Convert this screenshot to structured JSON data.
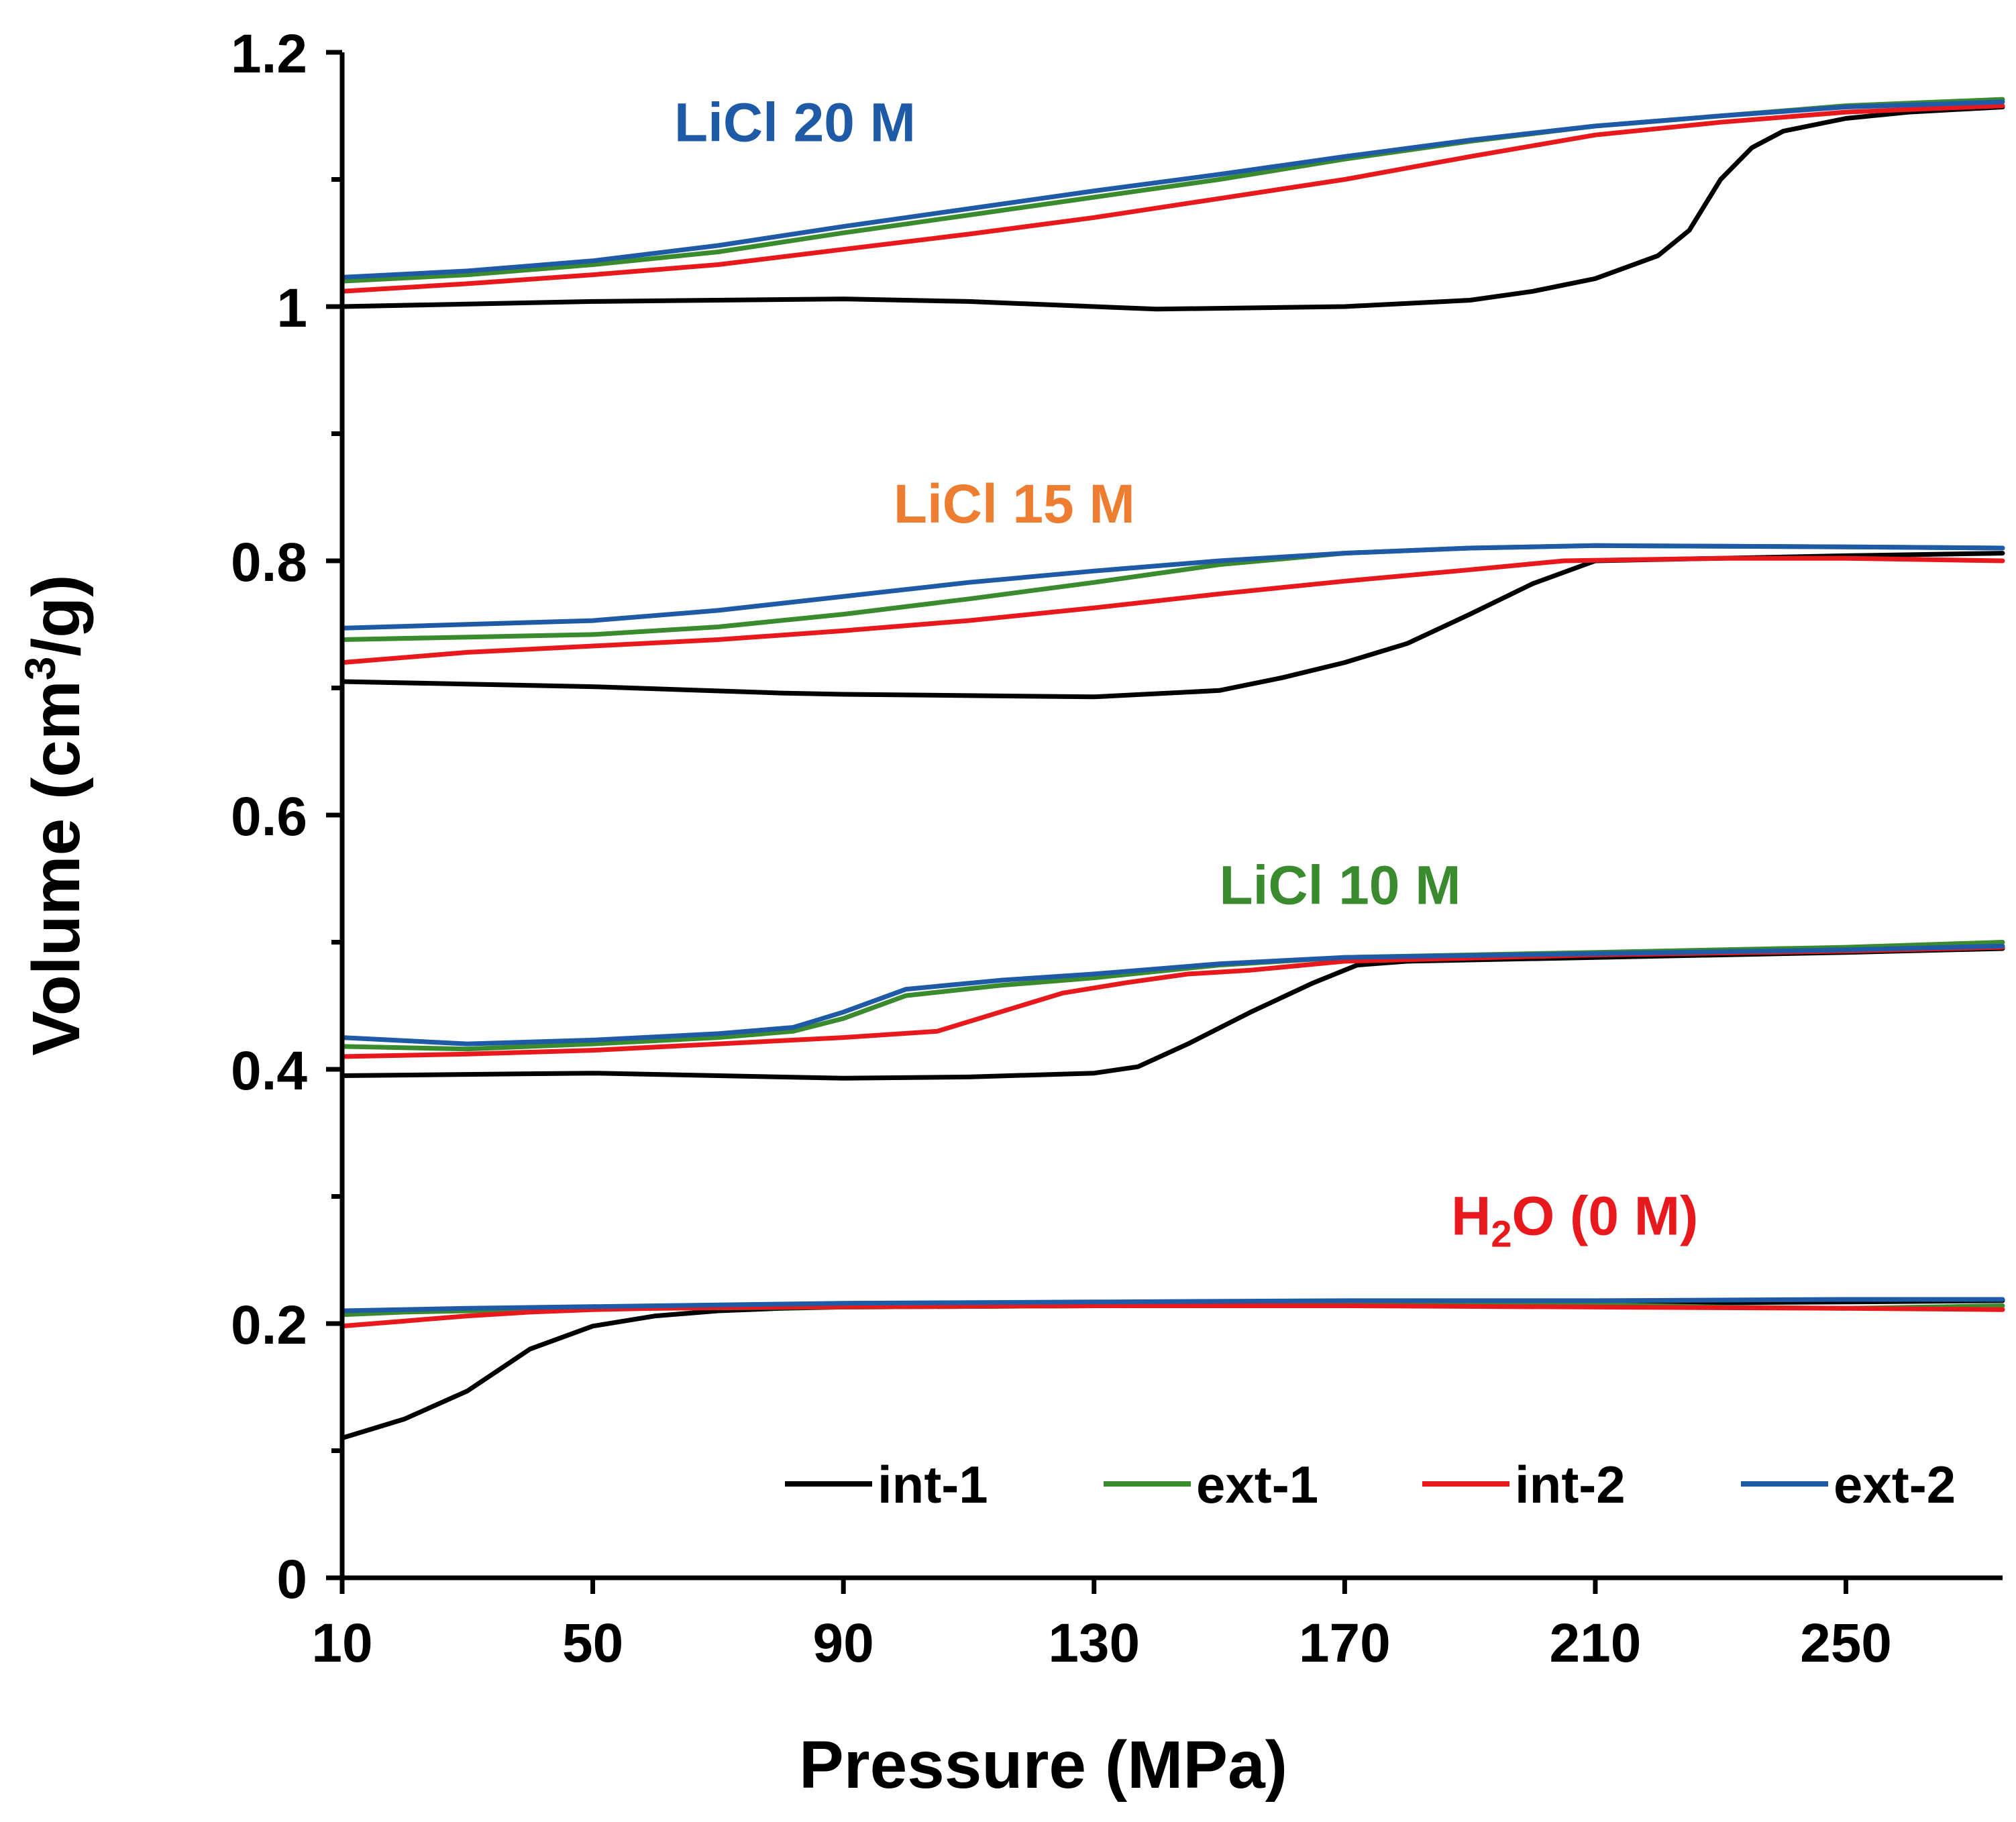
{
  "chart_data": {
    "type": "line",
    "title": "",
    "xlabel": "Pressure (MPa)",
    "ylabel": {
      "prefix": "Volume (cm",
      "superscript": "3",
      "suffix": "/g)"
    },
    "xlim": [
      10,
      275
    ],
    "ylim": [
      0,
      1.2
    ],
    "xticks": [
      10,
      50,
      90,
      130,
      170,
      210,
      250
    ],
    "xtick_labels": [
      "10",
      "50",
      "90",
      "130",
      "170",
      "210",
      "250"
    ],
    "yticks": [
      0,
      0.2,
      0.4,
      0.6,
      0.8,
      1.0,
      1.2
    ],
    "ytick_labels": [
      "0",
      "0.2",
      "0.4",
      "0.6",
      "0.8",
      "1",
      "1.2"
    ],
    "y_minor_step": 0.1,
    "grid": false,
    "legend": {
      "placement": "bottom-right",
      "entries": [
        "int-1",
        "ext-1",
        "int-2",
        "ext-2"
      ]
    },
    "series_colors": {
      "int-1": "#000000",
      "ext-1": "#3a8a2e",
      "int-2": "#e8191c",
      "ext-2": "#1f5aa6"
    },
    "annotations": [
      {
        "id": "licl-20",
        "text": "LiCl 20 M",
        "color": "#1f5aa6",
        "at": [
          63,
          1.13
        ]
      },
      {
        "id": "licl-15",
        "text": "LiCl 15 M",
        "color": "#ed7d31",
        "at": [
          98,
          0.83
        ]
      },
      {
        "id": "licl-10",
        "text": "LiCl 10 M",
        "color": "#3a8a2e",
        "at": [
          150,
          0.53
        ]
      },
      {
        "id": "h2o",
        "text": "H",
        "sub": "2",
        "text2": "O (0 M)",
        "color": "#e8191c",
        "at": [
          187,
          0.27
        ]
      }
    ],
    "groups": [
      {
        "name": "H2O (0 M)",
        "series": [
          {
            "name": "int-1",
            "x": [
              10,
              20,
              30,
              40,
              50,
              60,
              70,
              80,
              90,
              130,
              170,
              210,
              250,
              275
            ],
            "y": [
              0.11,
              0.125,
              0.147,
              0.18,
              0.198,
              0.206,
              0.21,
              0.212,
              0.213,
              0.214,
              0.215,
              0.216,
              0.217,
              0.218
            ]
          },
          {
            "name": "ext-1",
            "x": [
              10,
              20,
              40,
              60,
              90,
              130,
              170,
              210,
              230,
              250,
              275
            ],
            "y": [
              0.207,
              0.209,
              0.211,
              0.212,
              0.213,
              0.214,
              0.215,
              0.215,
              0.213,
              0.212,
              0.214
            ]
          },
          {
            "name": "int-2",
            "x": [
              10,
              20,
              30,
              40,
              50,
              60,
              80,
              130,
              170,
              210,
              250,
              275
            ],
            "y": [
              0.198,
              0.202,
              0.206,
              0.209,
              0.211,
              0.212,
              0.213,
              0.214,
              0.214,
              0.213,
              0.212,
              0.211
            ]
          },
          {
            "name": "ext-2",
            "x": [
              10,
              30,
              60,
              90,
              130,
              170,
              210,
              250,
              275
            ],
            "y": [
              0.21,
              0.212,
              0.214,
              0.216,
              0.217,
              0.218,
              0.218,
              0.219,
              0.219
            ]
          }
        ]
      },
      {
        "name": "LiCl 10 M",
        "series": [
          {
            "name": "int-1",
            "x": [
              10,
              50,
              90,
              110,
              130,
              137,
              145,
              155,
              165,
              172,
              180,
              210,
              250,
              275
            ],
            "y": [
              0.395,
              0.397,
              0.393,
              0.394,
              0.397,
              0.402,
              0.42,
              0.445,
              0.468,
              0.482,
              0.485,
              0.488,
              0.492,
              0.495
            ]
          },
          {
            "name": "ext-1",
            "x": [
              10,
              30,
              50,
              70,
              82,
              90,
              100,
              115,
              130,
              150,
              170,
              210,
              250,
              275
            ],
            "y": [
              0.418,
              0.416,
              0.42,
              0.425,
              0.43,
              0.44,
              0.458,
              0.466,
              0.472,
              0.482,
              0.488,
              0.492,
              0.496,
              0.5
            ]
          },
          {
            "name": "int-2",
            "x": [
              10,
              30,
              50,
              70,
              90,
              105,
              115,
              125,
              135,
              145,
              155,
              170,
              210,
              250,
              275
            ],
            "y": [
              0.41,
              0.412,
              0.415,
              0.42,
              0.425,
              0.43,
              0.445,
              0.46,
              0.468,
              0.475,
              0.478,
              0.485,
              0.49,
              0.493,
              0.496
            ]
          },
          {
            "name": "ext-2",
            "x": [
              10,
              30,
              50,
              70,
              82,
              90,
              100,
              115,
              130,
              150,
              170,
              210,
              250,
              275
            ],
            "y": [
              0.425,
              0.42,
              0.423,
              0.428,
              0.433,
              0.445,
              0.463,
              0.47,
              0.475,
              0.483,
              0.488,
              0.491,
              0.494,
              0.497
            ]
          }
        ]
      },
      {
        "name": "LiCl 15 M",
        "series": [
          {
            "name": "int-1",
            "x": [
              10,
              50,
              80,
              90,
              130,
              150,
              160,
              170,
              180,
              190,
              200,
              210,
              250,
              275
            ],
            "y": [
              0.705,
              0.701,
              0.696,
              0.695,
              0.693,
              0.698,
              0.708,
              0.72,
              0.735,
              0.758,
              0.782,
              0.8,
              0.804,
              0.806
            ]
          },
          {
            "name": "ext-1",
            "x": [
              10,
              30,
              50,
              70,
              90,
              110,
              130,
              150,
              170,
              190,
              210,
              250,
              275
            ],
            "y": [
              0.738,
              0.74,
              0.742,
              0.748,
              0.758,
              0.77,
              0.783,
              0.797,
              0.806,
              0.81,
              0.812,
              0.811,
              0.81
            ]
          },
          {
            "name": "int-2",
            "x": [
              10,
              30,
              50,
              70,
              90,
              110,
              130,
              150,
              170,
              190,
              205,
              230,
              250,
              275
            ],
            "y": [
              0.72,
              0.728,
              0.733,
              0.738,
              0.745,
              0.753,
              0.763,
              0.774,
              0.784,
              0.793,
              0.8,
              0.802,
              0.802,
              0.8
            ]
          },
          {
            "name": "ext-2",
            "x": [
              10,
              30,
              50,
              70,
              90,
              110,
              130,
              150,
              170,
              190,
              210,
              250,
              275
            ],
            "y": [
              0.747,
              0.75,
              0.753,
              0.761,
              0.772,
              0.783,
              0.792,
              0.8,
              0.806,
              0.81,
              0.812,
              0.811,
              0.81
            ]
          }
        ]
      },
      {
        "name": "LiCl 20 M",
        "series": [
          {
            "name": "int-1",
            "x": [
              10,
              50,
              90,
              110,
              140,
              170,
              190,
              200,
              210,
              220,
              225,
              230,
              235,
              240,
              250,
              260,
              275
            ],
            "y": [
              1.0,
              1.004,
              1.006,
              1.004,
              0.998,
              1.0,
              1.005,
              1.012,
              1.022,
              1.04,
              1.06,
              1.1,
              1.125,
              1.138,
              1.148,
              1.153,
              1.157
            ]
          },
          {
            "name": "ext-1",
            "x": [
              10,
              30,
              50,
              70,
              90,
              110,
              130,
              150,
              170,
              190,
              210,
              230,
              250,
              275
            ],
            "y": [
              1.02,
              1.025,
              1.033,
              1.043,
              1.058,
              1.072,
              1.086,
              1.1,
              1.116,
              1.13,
              1.142,
              1.15,
              1.158,
              1.163
            ]
          },
          {
            "name": "int-2",
            "x": [
              10,
              30,
              50,
              70,
              90,
              110,
              130,
              150,
              170,
              190,
              210,
              230,
              250,
              275
            ],
            "y": [
              1.012,
              1.018,
              1.025,
              1.033,
              1.045,
              1.057,
              1.07,
              1.085,
              1.1,
              1.118,
              1.135,
              1.145,
              1.153,
              1.158
            ]
          },
          {
            "name": "ext-2",
            "x": [
              10,
              30,
              50,
              70,
              90,
              110,
              130,
              150,
              170,
              190,
              210,
              230,
              250,
              275
            ],
            "y": [
              1.023,
              1.028,
              1.036,
              1.048,
              1.063,
              1.077,
              1.091,
              1.104,
              1.118,
              1.131,
              1.142,
              1.15,
              1.157,
              1.161
            ]
          }
        ]
      }
    ]
  }
}
